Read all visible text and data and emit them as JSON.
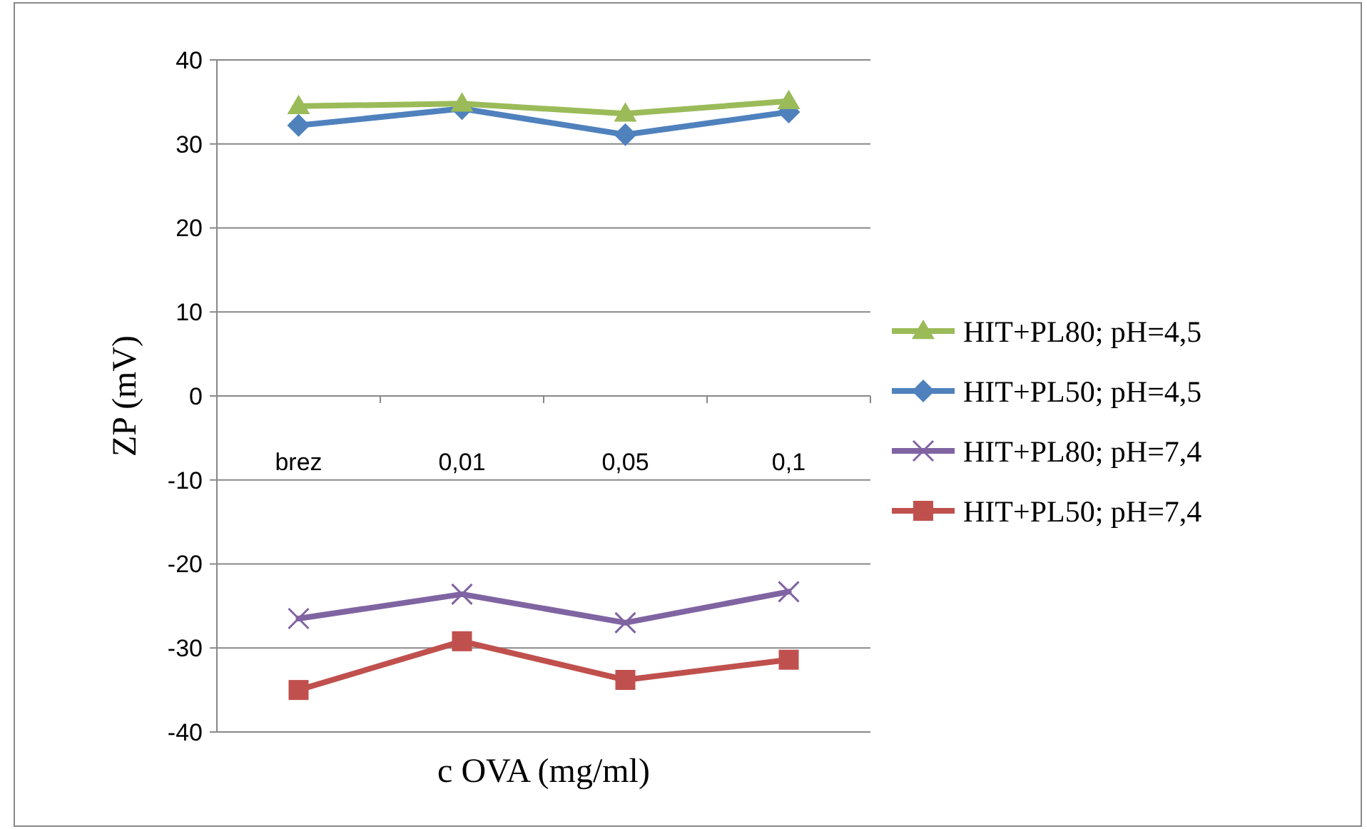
{
  "chart_data": {
    "type": "line",
    "xlabel": "c OVA (mg/ml)",
    "ylabel": "ZP (mV)",
    "categories": [
      "brez",
      "0,01",
      "0,05",
      "0,1"
    ],
    "ylim": [
      -40,
      40
    ],
    "yticks": [
      -40,
      -30,
      -20,
      -10,
      0,
      10,
      20,
      30,
      40
    ],
    "grid": "y",
    "legend": "right",
    "series": [
      {
        "name": "HIT+PL80; pH=4,5",
        "color": "#9bbb59",
        "marker": "triangle",
        "values": [
          34.5,
          34.8,
          33.6,
          35.1
        ]
      },
      {
        "name": "HIT+PL50; pH=4,5",
        "color": "#4f81bd",
        "marker": "diamond",
        "values": [
          32.2,
          34.2,
          31.1,
          33.8
        ]
      },
      {
        "name": "HIT+PL80; pH=7,4",
        "color": "#8064a2",
        "marker": "cross",
        "values": [
          -26.5,
          -23.6,
          -27,
          -23.3
        ]
      },
      {
        "name": "HIT+PL50; pH=7,4",
        "color": "#c0504d",
        "marker": "square",
        "values": [
          -35,
          -29.2,
          -33.8,
          -31.4
        ]
      }
    ]
  }
}
